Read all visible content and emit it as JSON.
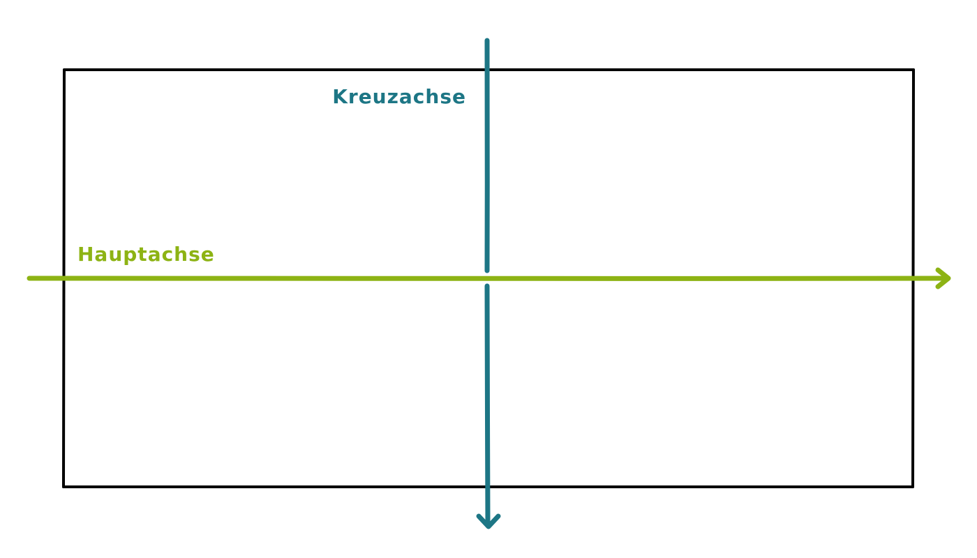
{
  "labels": {
    "main_axis": "Hauptachse",
    "cross_axis": "Kreuzachse"
  },
  "colors": {
    "container_border": "#000000",
    "main_axis": "#8db314",
    "cross_axis": "#1d7685",
    "background": "#ffffff"
  }
}
